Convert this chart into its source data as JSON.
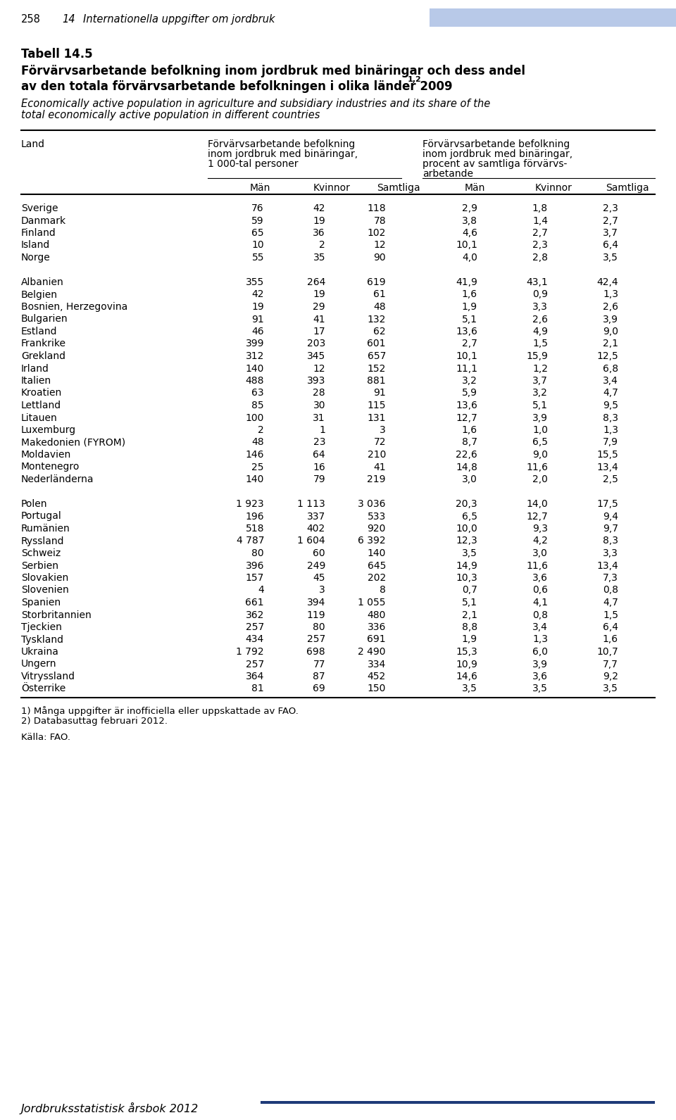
{
  "page_num": "258",
  "page_chapter": "14",
  "page_title_header": "Internationella uppgifter om jordbruk",
  "title_bold": "Tabell 14.5",
  "title_main_line1": "Förvärvsarbetande befolkning inom jordbruk med binäringar och dess andel",
  "title_main_line2": "av den totala förvärvsarbetande befolkningen i olika länder 2009",
  "title_superscript": "1,2",
  "title_italic_line1": "Economically active population in agriculture and subsidiary industries and its share of the",
  "title_italic_line2": "total economically active population in different countries",
  "col_header_left": "Land",
  "col_header_mid_line1": "Förvärvsarbetande befolkning",
  "col_header_mid_line2": "inom jordbruk med binäringar,",
  "col_header_mid_line3": "1 000-tal personer",
  "col_header_right_line1": "Förvärvsarbetande befolkning",
  "col_header_right_line2": "inom jordbruk med binäringar,",
  "col_header_right_line3": "procent av samtliga förvärvs-",
  "col_header_right_line4": "arbetande",
  "sub_headers": [
    "Män",
    "Kvinnor",
    "Samtliga",
    "Män",
    "Kvinnor",
    "Samtliga"
  ],
  "groups": [
    {
      "rows": [
        [
          "Sverige",
          "76",
          "42",
          "118",
          "2,9",
          "1,8",
          "2,3"
        ],
        [
          "Danmark",
          "59",
          "19",
          "78",
          "3,8",
          "1,4",
          "2,7"
        ],
        [
          "Finland",
          "65",
          "36",
          "102",
          "4,6",
          "2,7",
          "3,7"
        ],
        [
          "Island",
          "10",
          "2",
          "12",
          "10,1",
          "2,3",
          "6,4"
        ],
        [
          "Norge",
          "55",
          "35",
          "90",
          "4,0",
          "2,8",
          "3,5"
        ]
      ]
    },
    {
      "rows": [
        [
          "Albanien",
          "355",
          "264",
          "619",
          "41,9",
          "43,1",
          "42,4"
        ],
        [
          "Belgien",
          "42",
          "19",
          "61",
          "1,6",
          "0,9",
          "1,3"
        ],
        [
          "Bosnien, Herzegovina",
          "19",
          "29",
          "48",
          "1,9",
          "3,3",
          "2,6"
        ],
        [
          "Bulgarien",
          "91",
          "41",
          "132",
          "5,1",
          "2,6",
          "3,9"
        ],
        [
          "Estland",
          "46",
          "17",
          "62",
          "13,6",
          "4,9",
          "9,0"
        ],
        [
          "Frankrike",
          "399",
          "203",
          "601",
          "2,7",
          "1,5",
          "2,1"
        ],
        [
          "Grekland",
          "312",
          "345",
          "657",
          "10,1",
          "15,9",
          "12,5"
        ],
        [
          "Irland",
          "140",
          "12",
          "152",
          "11,1",
          "1,2",
          "6,8"
        ],
        [
          "Italien",
          "488",
          "393",
          "881",
          "3,2",
          "3,7",
          "3,4"
        ],
        [
          "Kroatien",
          "63",
          "28",
          "91",
          "5,9",
          "3,2",
          "4,7"
        ],
        [
          "Lettland",
          "85",
          "30",
          "115",
          "13,6",
          "5,1",
          "9,5"
        ],
        [
          "Litauen",
          "100",
          "31",
          "131",
          "12,7",
          "3,9",
          "8,3"
        ],
        [
          "Luxemburg",
          "2",
          "1",
          "3",
          "1,6",
          "1,0",
          "1,3"
        ],
        [
          "Makedonien (FYROM)",
          "48",
          "23",
          "72",
          "8,7",
          "6,5",
          "7,9"
        ],
        [
          "Moldavien",
          "146",
          "64",
          "210",
          "22,6",
          "9,0",
          "15,5"
        ],
        [
          "Montenegro",
          "25",
          "16",
          "41",
          "14,8",
          "11,6",
          "13,4"
        ],
        [
          "Nederländerna",
          "140",
          "79",
          "219",
          "3,0",
          "2,0",
          "2,5"
        ]
      ]
    },
    {
      "rows": [
        [
          "Polen",
          "1 923",
          "1 113",
          "3 036",
          "20,3",
          "14,0",
          "17,5"
        ],
        [
          "Portugal",
          "196",
          "337",
          "533",
          "6,5",
          "12,7",
          "9,4"
        ],
        [
          "Rumänien",
          "518",
          "402",
          "920",
          "10,0",
          "9,3",
          "9,7"
        ],
        [
          "Ryssland",
          "4 787",
          "1 604",
          "6 392",
          "12,3",
          "4,2",
          "8,3"
        ],
        [
          "Schweiz",
          "80",
          "60",
          "140",
          "3,5",
          "3,0",
          "3,3"
        ],
        [
          "Serbien",
          "396",
          "249",
          "645",
          "14,9",
          "11,6",
          "13,4"
        ],
        [
          "Slovakien",
          "157",
          "45",
          "202",
          "10,3",
          "3,6",
          "7,3"
        ],
        [
          "Slovenien",
          "4",
          "3",
          "8",
          "0,7",
          "0,6",
          "0,8"
        ],
        [
          "Spanien",
          "661",
          "394",
          "1 055",
          "5,1",
          "4,1",
          "4,7"
        ],
        [
          "Storbritannien",
          "362",
          "119",
          "480",
          "2,1",
          "0,8",
          "1,5"
        ],
        [
          "Tjeckien",
          "257",
          "80",
          "336",
          "8,8",
          "3,4",
          "6,4"
        ],
        [
          "Tyskland",
          "434",
          "257",
          "691",
          "1,9",
          "1,3",
          "1,6"
        ],
        [
          "Ukraina",
          "1 792",
          "698",
          "2 490",
          "15,3",
          "6,0",
          "10,7"
        ],
        [
          "Ungern",
          "257",
          "77",
          "334",
          "10,9",
          "3,9",
          "7,7"
        ],
        [
          "Vitryssland",
          "364",
          "87",
          "452",
          "14,6",
          "3,6",
          "9,2"
        ],
        [
          "Österrike",
          "81",
          "69",
          "150",
          "3,5",
          "3,5",
          "3,5"
        ]
      ]
    }
  ],
  "footnotes": [
    "1) Många uppgifter är inofficiella eller uppskattade av FAO.",
    "2) Databasuttag februari 2012."
  ],
  "source": "Källa: FAO.",
  "footer": "Jordbruksstatistisk årsbok 2012",
  "header_bar_color": "#b8c9e8",
  "footer_bar_color": "#1e3a78"
}
